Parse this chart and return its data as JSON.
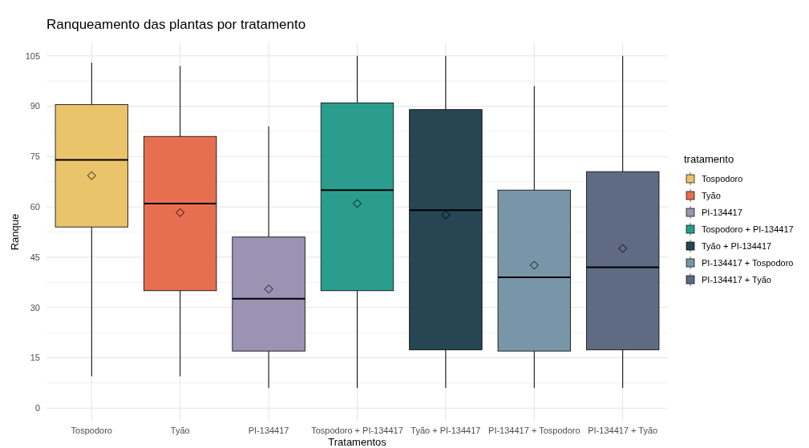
{
  "chart_data": {
    "type": "box",
    "title": "Ranqueamento das plantas por tratamento",
    "xlabel": "Tratamentos",
    "ylabel": "Ranque",
    "legend_title": "tratamento",
    "categories": [
      "Tospodoro",
      "Tyão",
      "PI-134417",
      "Tospodoro + PI-134417",
      "Tyão + PI-134417",
      "PI-134417 + Tospodoro",
      "PI-134417 + Tyão"
    ],
    "series": [
      {
        "name": "Tospodoro",
        "color": "#e9c46a",
        "boxes": [
          {
            "low": 9.5,
            "q1": 54,
            "median": 74,
            "q3": 90.5,
            "high": 103,
            "mean": 69.3
          },
          null,
          null,
          null,
          null,
          null,
          null
        ]
      },
      {
        "name": "Tyão",
        "color": "#e76f51",
        "boxes": [
          null,
          {
            "low": 9.5,
            "q1": 35,
            "median": 61,
            "q3": 81,
            "high": 102,
            "mean": 58.3
          },
          null,
          null,
          null,
          null,
          null
        ]
      },
      {
        "name": "PI-134417",
        "color": "#9a94b2",
        "boxes": [
          null,
          null,
          {
            "low": 6,
            "q1": 17,
            "median": 32.6,
            "q3": 51,
            "high": 84,
            "mean": 35.5
          },
          null,
          null,
          null,
          null
        ]
      },
      {
        "name": "Tospodoro + PI-134417",
        "color": "#2a9d8f",
        "boxes": [
          null,
          null,
          null,
          {
            "low": 6,
            "q1": 35,
            "median": 65,
            "q3": 91,
            "high": 105,
            "mean": 61
          },
          null,
          null,
          null
        ]
      },
      {
        "name": "Tyão + PI-134417",
        "color": "#264653",
        "boxes": [
          null,
          null,
          null,
          null,
          {
            "low": 6,
            "q1": 17.4,
            "median": 59,
            "q3": 89,
            "high": 105,
            "mean": 57.6
          },
          null,
          null
        ]
      },
      {
        "name": "PI-134417 + Tospodoro",
        "color": "#7896a8",
        "boxes": [
          null,
          null,
          null,
          null,
          null,
          {
            "low": 6,
            "q1": 17,
            "median": 39,
            "q3": 65,
            "high": 96,
            "mean": 42.6
          },
          null
        ]
      },
      {
        "name": "PI-134417 + Tyão",
        "color": "#5f6b82",
        "boxes": [
          null,
          null,
          null,
          null,
          null,
          null,
          {
            "low": 6,
            "q1": 17.4,
            "median": 42,
            "q3": 70.5,
            "high": 105,
            "mean": 47.6
          }
        ]
      }
    ],
    "ylim": [
      -4,
      109
    ],
    "yticks": [
      0,
      15,
      30,
      45,
      60,
      75,
      90,
      105
    ],
    "grid": true,
    "legend": "right",
    "marker": "diamond"
  }
}
